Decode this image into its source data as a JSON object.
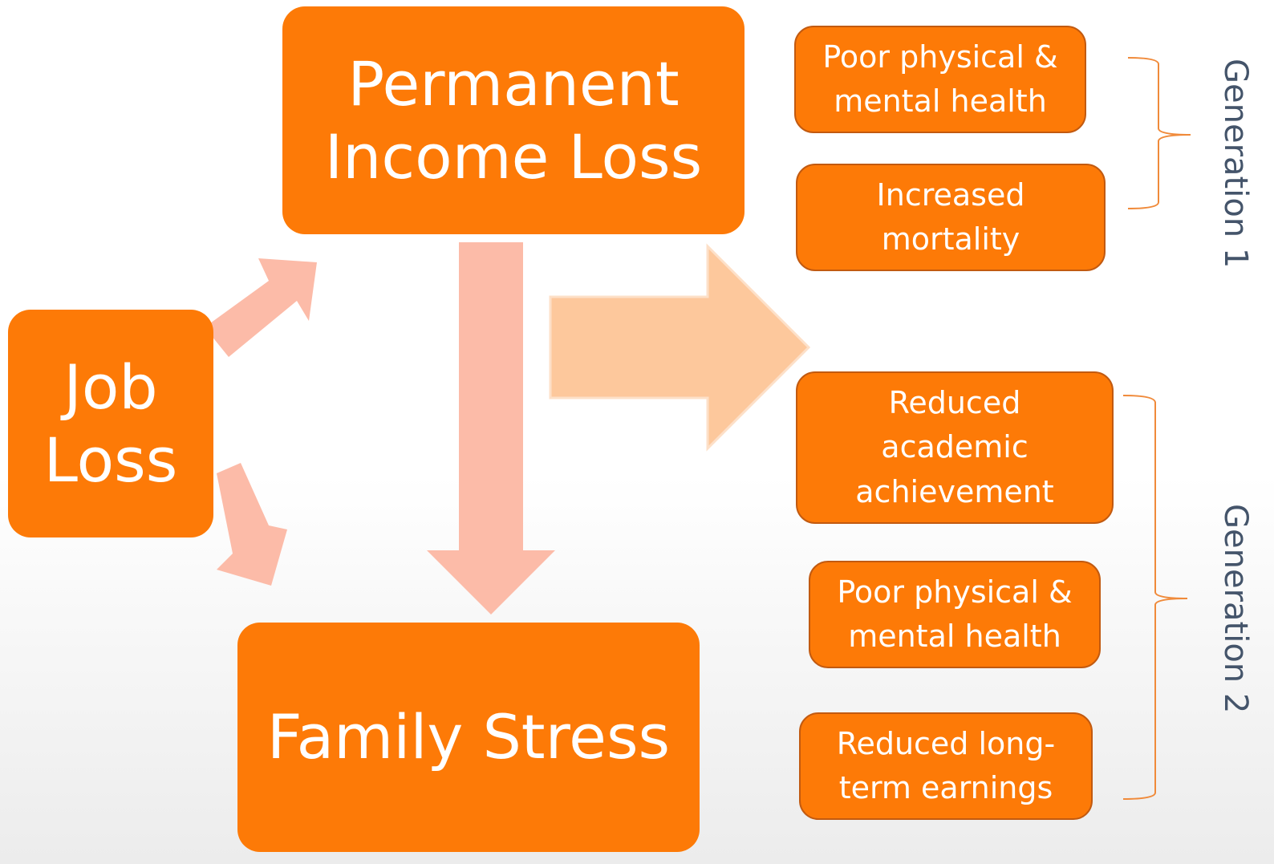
{
  "nodes": [
    {
      "label": "Permanent Income Loss"
    },
    {
      "label": "Job Loss"
    },
    {
      "label": "Family Stress"
    },
    {
      "label": "Poor physical & mental health"
    },
    {
      "label": "Increased mortality"
    },
    {
      "label": "Reduced academic achievement"
    },
    {
      "label": "Poor physical & mental health"
    },
    {
      "label": "Reduced long-term earnings"
    }
  ],
  "groups": [
    {
      "label": "Generation 1"
    },
    {
      "label": "Generation 2"
    }
  ]
}
